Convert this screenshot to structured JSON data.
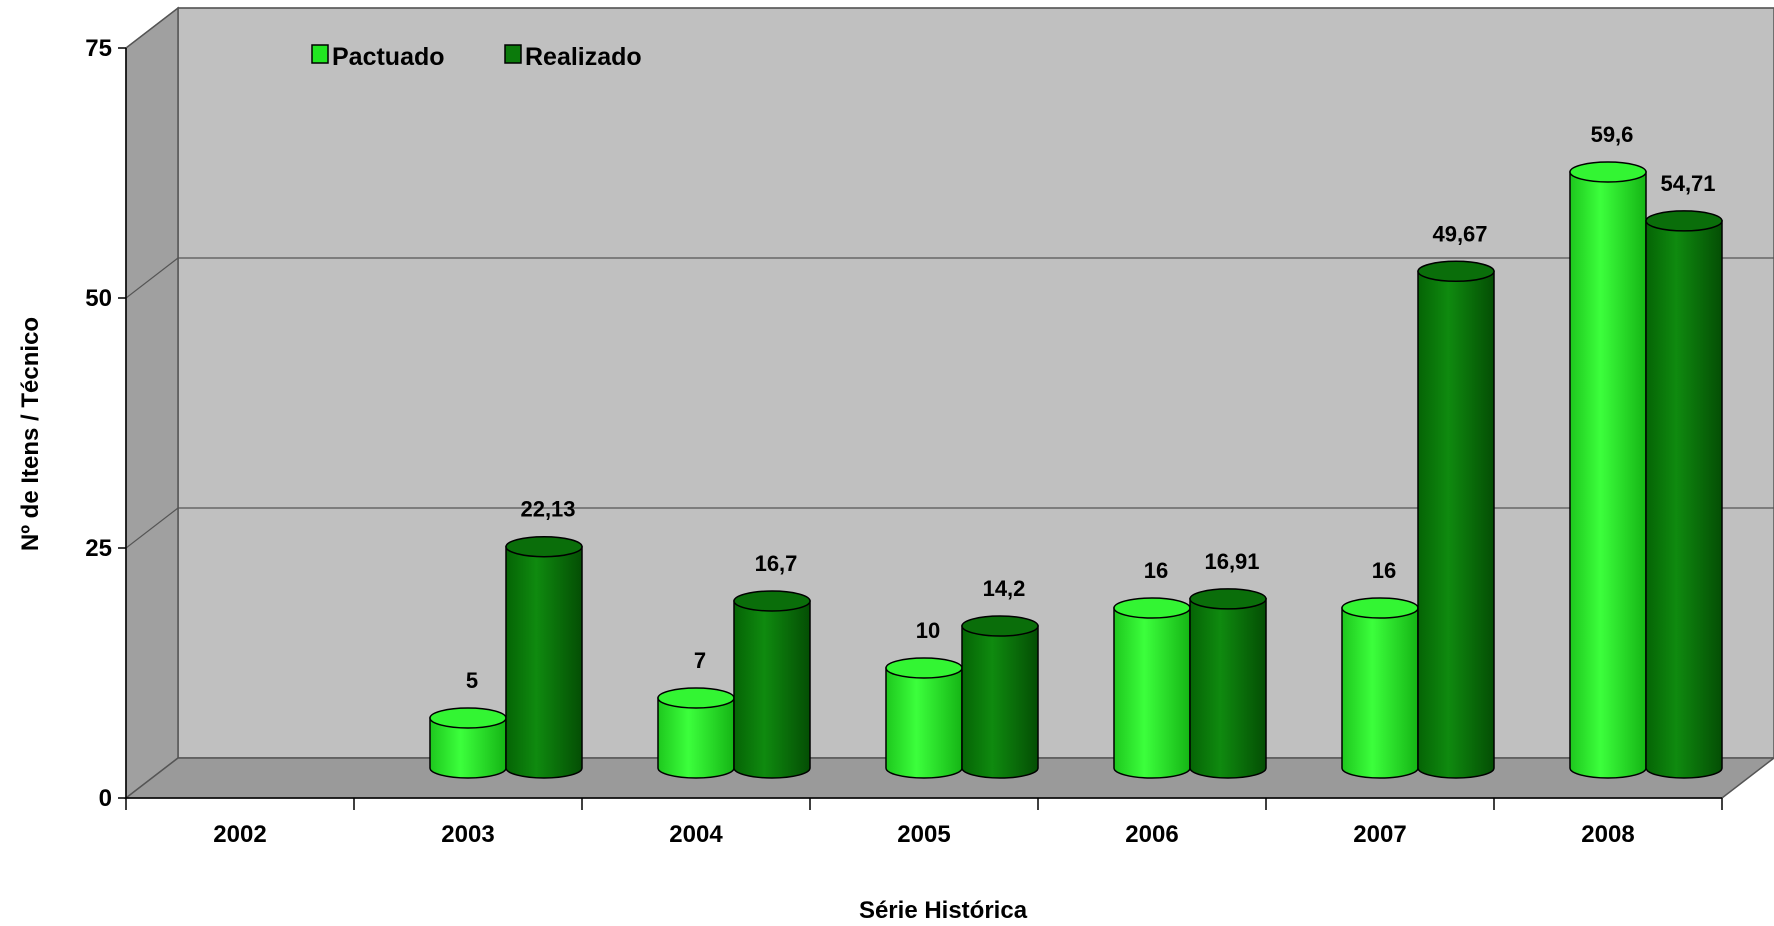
{
  "chart_data": {
    "type": "bar",
    "categories": [
      "2002",
      "2003",
      "2004",
      "2005",
      "2006",
      "2007",
      "2008"
    ],
    "series": [
      {
        "name": "Pactuado",
        "values": [
          null,
          5,
          7,
          10,
          16,
          16,
          59.6
        ],
        "labels": [
          "",
          "5",
          "7",
          "10",
          "16",
          "16",
          "59,6"
        ],
        "color": "#22e622"
      },
      {
        "name": "Realizado",
        "values": [
          null,
          22.13,
          16.7,
          14.2,
          16.91,
          49.67,
          54.71
        ],
        "labels": [
          "",
          "22,13",
          "16,7",
          "14,2",
          "16,91",
          "49,67",
          "54,71"
        ],
        "color": "#0b7a0b"
      }
    ],
    "title": "",
    "xlabel": "Série Histórica",
    "ylabel": "Nº de Itens / Técnico",
    "ylim": [
      0,
      75
    ],
    "yticks": [
      "0",
      "25",
      "50",
      "75"
    ],
    "grid": true,
    "legend": "top-left",
    "style": "3d-cylinder",
    "wall_color": "#c0c0c0"
  }
}
